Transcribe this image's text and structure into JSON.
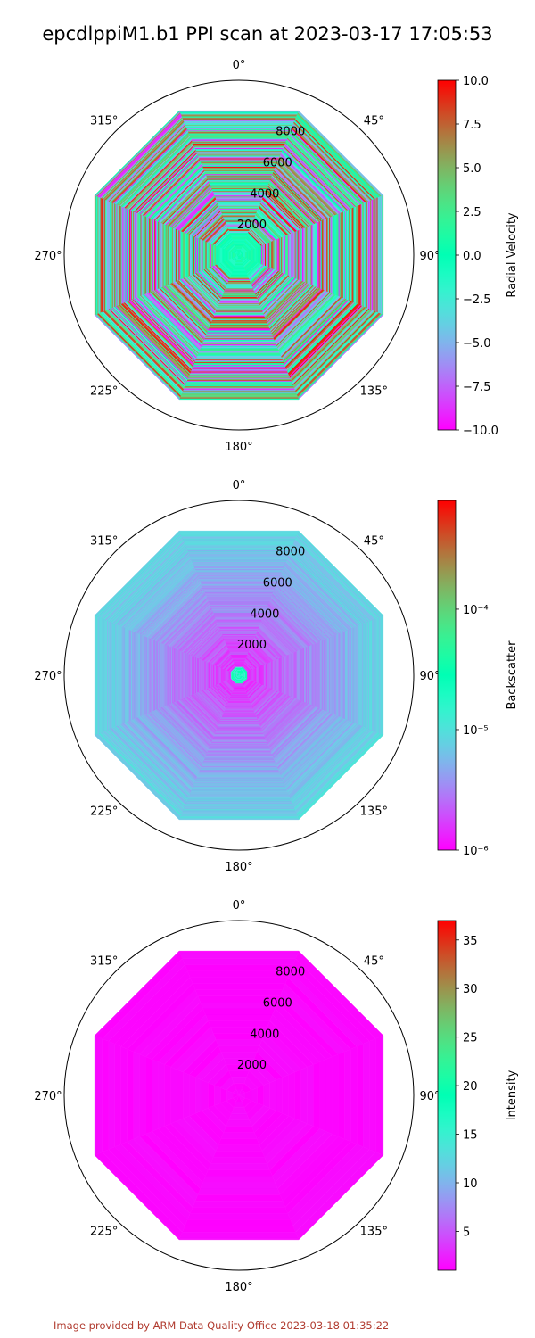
{
  "figure": {
    "title": "epcdlppiM1.b1 PPI scan at 2023-03-17 17:05:53",
    "footer": "Image provided by ARM Data Quality Office 2023-03-18 01:35:22"
  },
  "chart_data": [
    {
      "type": "heatmap",
      "projection": "polar",
      "theta_zero": "north",
      "theta_direction": "clockwise",
      "theta_ticks": [
        "0°",
        "45°",
        "90°",
        "135°",
        "180°",
        "225°",
        "270°",
        "315°"
      ],
      "r_ticks": [
        2000,
        4000,
        6000,
        8000
      ],
      "rlim": [
        0,
        10400
      ],
      "azimuth_sectors": 8,
      "colorbar": {
        "label": "Radial Velocity",
        "scale": "linear",
        "vmin": -10.0,
        "vmax": 10.0,
        "ticks": [
          -10.0,
          -7.5,
          -5.0,
          -2.5,
          0.0,
          2.5,
          5.0,
          7.5,
          10.0
        ],
        "tick_labels": [
          "−10.0",
          "−7.5",
          "−5.0",
          "−2.5",
          "0.0",
          "2.5",
          "5.0",
          "7.5",
          "10.0"
        ],
        "colormap": "rainbow"
      },
      "field_description": "noisy values spanning full range beyond ~1500 m; near-zero values near center"
    },
    {
      "type": "heatmap",
      "projection": "polar",
      "theta_zero": "north",
      "theta_direction": "clockwise",
      "theta_ticks": [
        "0°",
        "45°",
        "90°",
        "135°",
        "180°",
        "225°",
        "270°",
        "315°"
      ],
      "r_ticks": [
        2000,
        4000,
        6000,
        8000
      ],
      "rlim": [
        0,
        10400
      ],
      "azimuth_sectors": 8,
      "colorbar": {
        "label": "Backscatter",
        "scale": "log",
        "vmin": 1e-06,
        "vmax": 0.0008,
        "ticks": [
          1e-06,
          1e-05,
          0.0001
        ],
        "tick_labels": [
          "10⁻⁶",
          "10⁻⁵",
          "10⁻⁴"
        ],
        "colormap": "rainbow"
      },
      "field_description": "mostly at minimum (~1e-6) with slightly higher values at outer ranges and a small enhanced core near center"
    },
    {
      "type": "heatmap",
      "projection": "polar",
      "theta_zero": "north",
      "theta_direction": "clockwise",
      "theta_ticks": [
        "0°",
        "45°",
        "90°",
        "135°",
        "180°",
        "225°",
        "270°",
        "315°"
      ],
      "r_ticks": [
        2000,
        4000,
        6000,
        8000
      ],
      "rlim": [
        0,
        10400
      ],
      "azimuth_sectors": 8,
      "colorbar": {
        "label": "Intensity",
        "scale": "linear",
        "vmin": 1.0,
        "vmax": 37.0,
        "ticks": [
          5,
          10,
          15,
          20,
          25,
          30,
          35
        ],
        "tick_labels": [
          "5",
          "10",
          "15",
          "20",
          "25",
          "30",
          "35"
        ],
        "colormap": "rainbow"
      },
      "field_description": "uniform near-minimum values (~1) everywhere"
    }
  ]
}
